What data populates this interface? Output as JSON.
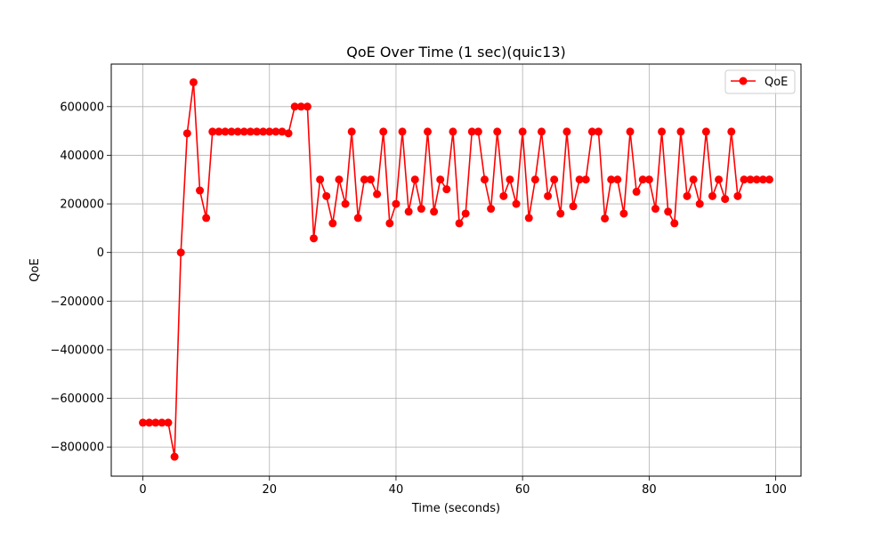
{
  "chart_data": {
    "type": "line",
    "title": "QoE Over Time (1 sec)(quic13)",
    "xlabel": "Time (seconds)",
    "ylabel": "QoE",
    "xlim": [
      -5,
      104
    ],
    "ylim": [
      -920000,
      775000
    ],
    "xticks": [
      0,
      20,
      40,
      60,
      80,
      100
    ],
    "xtick_labels": [
      "0",
      "20",
      "40",
      "60",
      "80",
      "100"
    ],
    "yticks": [
      -800000,
      -600000,
      -400000,
      -200000,
      0,
      200000,
      400000,
      600000
    ],
    "ytick_labels": [
      "−800000",
      "−600000",
      "−400000",
      "−200000",
      "0",
      "200000",
      "400000",
      "600000"
    ],
    "grid": true,
    "legend_position": "top-right",
    "series": [
      {
        "name": "QoE",
        "color": "#ff0000",
        "marker": "circle",
        "x": [
          0,
          1,
          2,
          3,
          4,
          5,
          6,
          7,
          8,
          9,
          10,
          11,
          12,
          13,
          14,
          15,
          16,
          17,
          18,
          19,
          20,
          21,
          22,
          23,
          24,
          25,
          26,
          27,
          28,
          29,
          30,
          31,
          32,
          33,
          34,
          35,
          36,
          37,
          38,
          39,
          40,
          41,
          42,
          43,
          44,
          45,
          46,
          47,
          48,
          49,
          50,
          51,
          52,
          53,
          54,
          55,
          56,
          57,
          58,
          59,
          60,
          61,
          62,
          63,
          64,
          65,
          66,
          67,
          68,
          69,
          70,
          71,
          72,
          73,
          74,
          75,
          76,
          77,
          78,
          79,
          80,
          81,
          82,
          83,
          84,
          85,
          86,
          87,
          88,
          89,
          90,
          91,
          92,
          93,
          94,
          95,
          96,
          97,
          98,
          99
        ],
        "values": [
          -700000,
          -700000,
          -700000,
          -700000,
          -700000,
          -840000,
          0,
          490000,
          700000,
          255000,
          142000,
          497000,
          497000,
          497000,
          497000,
          497000,
          497000,
          497000,
          497000,
          497000,
          497000,
          497000,
          497000,
          490000,
          600000,
          600000,
          600000,
          58000,
          300000,
          232000,
          120000,
          300000,
          200000,
          497000,
          142000,
          300000,
          300000,
          240000,
          497000,
          120000,
          200000,
          497000,
          168000,
          300000,
          180000,
          497000,
          168000,
          300000,
          260000,
          497000,
          120000,
          160000,
          497000,
          497000,
          300000,
          180000,
          497000,
          232000,
          300000,
          200000,
          497000,
          142000,
          300000,
          497000,
          232000,
          300000,
          160000,
          497000,
          190000,
          300000,
          300000,
          497000,
          497000,
          140000,
          300000,
          300000,
          160000,
          497000,
          250000,
          300000,
          300000,
          180000,
          497000,
          168000,
          120000,
          497000,
          232000,
          300000,
          200000,
          497000,
          232000,
          300000,
          220000,
          497000,
          232000,
          300000,
          300000,
          300000,
          300000,
          300000
        ]
      }
    ]
  },
  "colors": {
    "series": "#ff0000",
    "grid": "#b0b0b0",
    "axis": "#000000"
  }
}
